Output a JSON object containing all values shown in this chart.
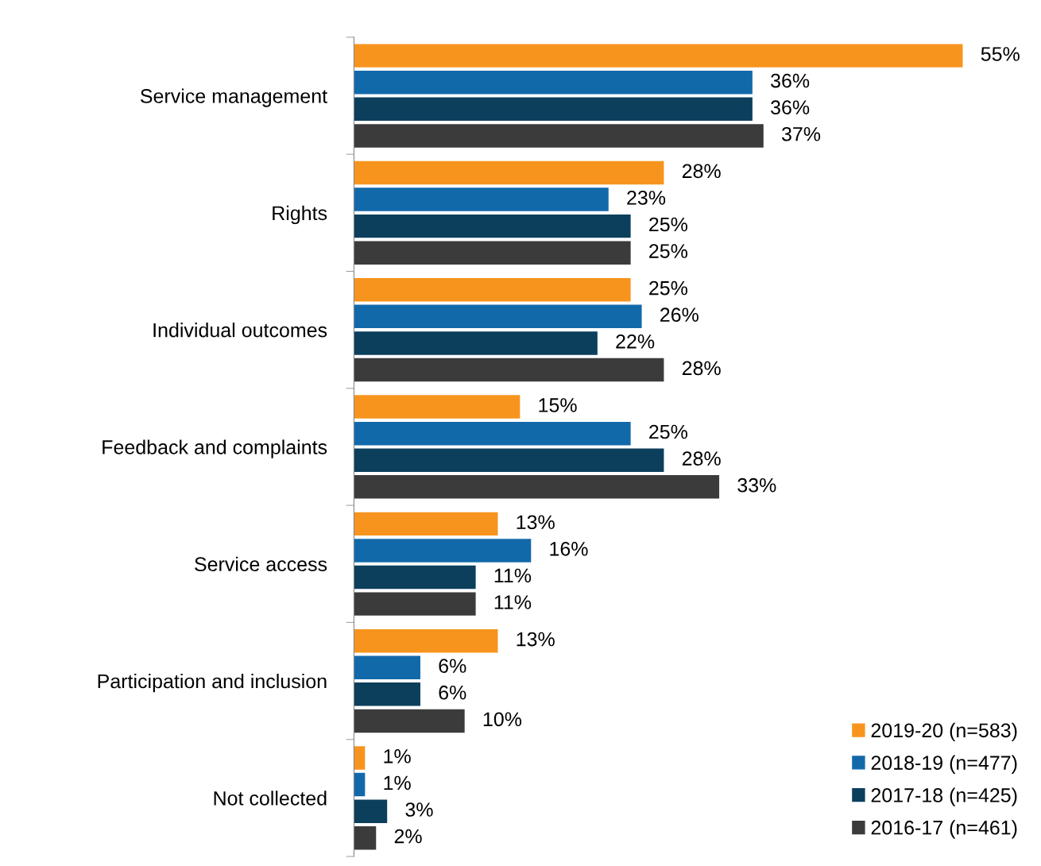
{
  "chart_data": {
    "type": "bar",
    "orientation": "horizontal",
    "legend": "bottom right",
    "grid": false,
    "tick_labels": "y",
    "categories": [
      "Service management",
      "Rights",
      "Individual outcomes",
      "Feedback and complaints",
      "Service access",
      "Participation and inclusion",
      "Not collected"
    ],
    "series": [
      {
        "name": "2019-20 (n=583)",
        "color": "#f7941d",
        "values": [
          55,
          28,
          25,
          15,
          13,
          13,
          1
        ],
        "value_labels": [
          "55%",
          "28%",
          "25%",
          "15%",
          "13%",
          "13%",
          "1%"
        ]
      },
      {
        "name": "2018-19 (n=477)",
        "color": "#1269aa",
        "values": [
          36,
          23,
          26,
          25,
          16,
          6,
          1
        ],
        "value_labels": [
          "36%",
          "23%",
          "26%",
          "25%",
          "16%",
          "6%",
          "1%"
        ]
      },
      {
        "name": "2017-18 (n=425)",
        "color": "#0b3f5c",
        "values": [
          36,
          25,
          22,
          28,
          11,
          6,
          3
        ],
        "value_labels": [
          "36%",
          "25%",
          "22%",
          "28%",
          "11%",
          "6%",
          "3%"
        ]
      },
      {
        "name": "2016-17 (n=461)",
        "color": "#3b3b3b",
        "values": [
          37,
          25,
          28,
          33,
          11,
          10,
          2
        ],
        "value_labels": [
          "37%",
          "25%",
          "28%",
          "33%",
          "11%",
          "10%",
          "2%"
        ]
      }
    ]
  }
}
